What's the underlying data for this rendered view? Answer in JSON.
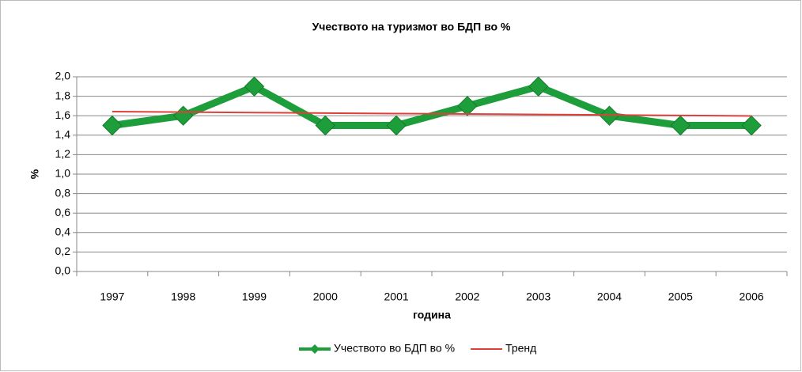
{
  "chart_data": {
    "type": "line",
    "title": "Учеството на туризмот во БДП во %",
    "x_label": "година",
    "y_label": "%",
    "categories": [
      "1997",
      "1998",
      "1999",
      "2000",
      "2001",
      "2002",
      "2003",
      "2004",
      "2005",
      "2006"
    ],
    "series": [
      {
        "name": "Учеството во БДП во %",
        "color": "#1e9e3a",
        "values": [
          1.5,
          1.6,
          1.9,
          1.5,
          1.5,
          1.7,
          1.9,
          1.6,
          1.5,
          1.5
        ]
      },
      {
        "name": "Тренд",
        "color": "#e0403a",
        "values": [
          1.642,
          1.637,
          1.632,
          1.627,
          1.622,
          1.618,
          1.613,
          1.608,
          1.603,
          1.598
        ]
      }
    ],
    "ylim": [
      0,
      2
    ],
    "yticks": [
      {
        "value": 0,
        "label": "0,0"
      },
      {
        "value": 0.2,
        "label": "0,2"
      },
      {
        "value": 0.4,
        "label": "0,4"
      },
      {
        "value": 0.6,
        "label": "0,6"
      },
      {
        "value": 0.8,
        "label": "0,8"
      },
      {
        "value": 1.0,
        "label": "1,0"
      },
      {
        "value": 1.2,
        "label": "1,2"
      },
      {
        "value": 1.4,
        "label": "1,4"
      },
      {
        "value": 1.6,
        "label": "1,6"
      },
      {
        "value": 1.8,
        "label": "1,8"
      },
      {
        "value": 2.0,
        "label": "2,0"
      }
    ],
    "grid": true,
    "legend": "bottom"
  }
}
